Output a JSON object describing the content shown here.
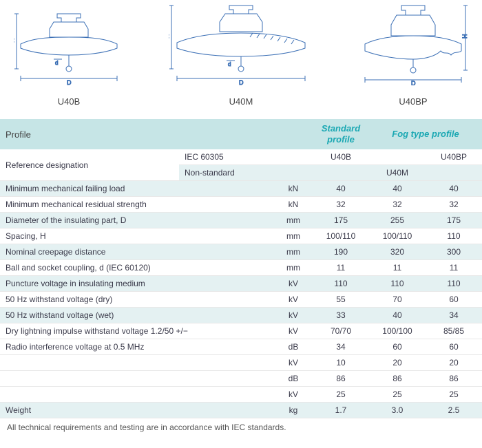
{
  "diagram_labels": {
    "a": "U40B",
    "b": "U40M",
    "c": "U40BP"
  },
  "headers": {
    "profile": "Profile",
    "standard_profile": "Standard profile",
    "fog_type_profile": "Fog type profile"
  },
  "ref_designation": {
    "label": "Reference designation",
    "iec": "IEC 60305",
    "nonstd": "Non-standard",
    "u40b": "U40B",
    "u40m": "U40M",
    "u40bp": "U40BP"
  },
  "rows": [
    {
      "label": "Minimum mechanical failing load",
      "unit": "kN",
      "v1": "40",
      "v2": "40",
      "v3": "40"
    },
    {
      "label": "Minimum mechanical residual strength",
      "unit": "kN",
      "v1": "32",
      "v2": "32",
      "v3": "32"
    },
    {
      "label": "Diameter of the insulating part, D",
      "unit": "mm",
      "v1": "175",
      "v2": "255",
      "v3": "175"
    },
    {
      "label": "Spacing, H",
      "unit": "mm",
      "v1": "100/110",
      "v2": "100/110",
      "v3": "110"
    },
    {
      "label": "Nominal creepage distance",
      "unit": "mm",
      "v1": "190",
      "v2": "320",
      "v3": "300"
    },
    {
      "label": "Ball and socket coupling, d (IEC 60120)",
      "unit": "mm",
      "v1": "11",
      "v2": "11",
      "v3": "11"
    },
    {
      "label": "Puncture voltage in insulating medium",
      "unit": "kV",
      "v1": "110",
      "v2": "110",
      "v3": "110"
    },
    {
      "label": "50 Hz withstand voltage (dry)",
      "unit": "kV",
      "v1": "55",
      "v2": "70",
      "v3": "60"
    },
    {
      "label": "50 Hz withstand voltage (wet)",
      "unit": "kV",
      "v1": "33",
      "v2": "40",
      "v3": "34"
    },
    {
      "label": "Dry lightning impulse withstand voltage 1.2/50 +/−",
      "unit": "kV",
      "v1": "70/70",
      "v2": "100/100",
      "v3": "85/85"
    },
    {
      "label": "Radio interference voltage at 0.5 MHz",
      "unit": "dB",
      "v1": "34",
      "v2": "60",
      "v3": "60"
    },
    {
      "label": "",
      "unit": "kV",
      "v1": "10",
      "v2": "20",
      "v3": "20"
    },
    {
      "label": "",
      "unit": "dB",
      "v1": "86",
      "v2": "86",
      "v3": "86"
    },
    {
      "label": "",
      "unit": "kV",
      "v1": "25",
      "v2": "25",
      "v3": "25"
    },
    {
      "label": "Weight",
      "unit": "kg",
      "v1": "1.7",
      "v2": "3.0",
      "v3": "2.5"
    }
  ],
  "footnote": "All technical requirements and testing are in accordance with IEC standards.",
  "colors": {
    "stroke": "#3b6fb5",
    "header_bg": "#c6e5e6",
    "zebra_bg": "#e4f1f2",
    "accent_text": "#1ba8b3"
  }
}
